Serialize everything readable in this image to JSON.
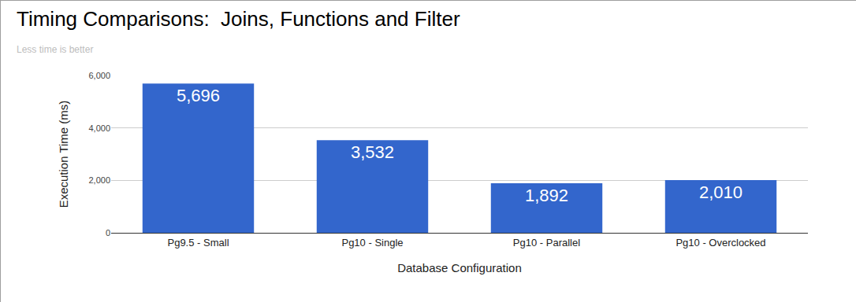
{
  "chart_data": {
    "type": "bar",
    "title": "Timing Comparisons:  Joins, Functions and Filter",
    "subtitle": "Less time is better",
    "x_label": "Database Configuration",
    "y_label": "Execution Time (ms)",
    "categories": [
      "Pg9.5 - Small",
      "Pg10 - Single",
      "Pg10 - Parallel",
      "Pg10 - Overclocked"
    ],
    "values": [
      5696,
      3532,
      1892,
      2010
    ],
    "value_labels": [
      "5,696",
      "3,532",
      "1,892",
      "2,010"
    ],
    "color": "#3366cc",
    "ylim": [
      0,
      6000
    ],
    "yticks": [
      0,
      {
        "value": 2000,
        "label": "2,000"
      },
      {
        "value": 4000,
        "label": "4,000"
      },
      {
        "value": 6000,
        "label": "6,000"
      }
    ],
    "grid": true,
    "data_labels": true
  }
}
